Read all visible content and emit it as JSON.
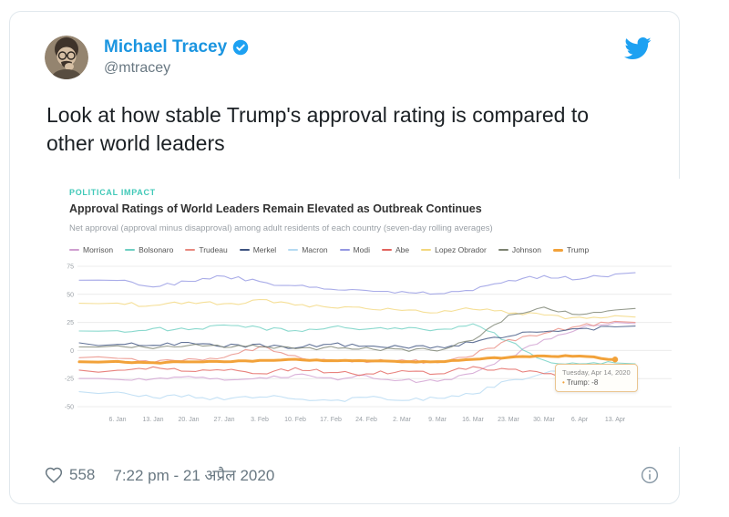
{
  "tweet": {
    "author": {
      "name": "Michael Tracey",
      "handle": "@mtracey",
      "verified": true
    },
    "text": "Look at how stable Trump's approval rating is compared to other world leaders",
    "likes": "558",
    "timestamp": "7:22 pm - 21 अप्रैल 2020"
  },
  "colors": {
    "link_blue": "#1b95e0",
    "bird_blue": "#1da1f2",
    "muted_gray": "#697882",
    "card_border": "#e1e8ed",
    "kicker_teal": "#41c9b8"
  },
  "chart_data": {
    "type": "line",
    "kicker": "POLITICAL IMPACT",
    "title": "Approval Ratings of World Leaders Remain Elevated as Outbreak Continues",
    "subtitle": "Net approval (approval minus disapproval) among adult residents of each country (seven-day rolling averages)",
    "x_ticks": [
      "6. Jan",
      "13. Jan",
      "20. Jan",
      "27. Jan",
      "3. Feb",
      "10. Feb",
      "17. Feb",
      "24. Feb",
      "2. Mar",
      "9. Mar",
      "16. Mar",
      "23. Mar",
      "30. Mar",
      "6. Apr",
      "13. Apr"
    ],
    "y_ticks": [
      75,
      50,
      25,
      0,
      -25,
      -50
    ],
    "ylim": [
      -50,
      75
    ],
    "grid": "horizontal",
    "legend_position": "top-left",
    "tooltip": {
      "date": "Tuesday, Apr 14, 2020",
      "marker": "•",
      "label": "Trump: -8"
    },
    "series": [
      {
        "name": "Morrison",
        "color": "#cf9ed0",
        "width": 1.1,
        "values": [
          -25,
          -26,
          -23,
          -26,
          -24,
          -22,
          -25,
          -23,
          -26,
          -28,
          -21,
          -6,
          10,
          20,
          25
        ]
      },
      {
        "name": "Bolsonaro",
        "color": "#6ecfc2",
        "width": 1.1,
        "values": [
          17,
          20,
          18,
          22,
          20,
          18,
          21,
          19,
          20,
          18,
          24,
          8,
          -9,
          -12,
          -11
        ]
      },
      {
        "name": "Trudeau",
        "color": "#e8897f",
        "width": 1.1,
        "values": [
          -7,
          -10,
          -8,
          -6,
          3,
          -5,
          -9,
          -10,
          -9,
          -11,
          -4,
          9,
          16,
          22,
          26
        ]
      },
      {
        "name": "Merkel",
        "color": "#3d5380",
        "width": 1.1,
        "values": [
          6,
          4,
          7,
          4,
          5,
          3,
          6,
          4,
          3,
          3,
          7,
          13,
          17,
          19,
          21
        ]
      },
      {
        "name": "Macron",
        "color": "#b5daf2",
        "width": 1.1,
        "values": [
          -37,
          -42,
          -40,
          -44,
          -41,
          -43,
          -45,
          -42,
          -44,
          -43,
          -39,
          -27,
          -21,
          -15,
          -19
        ]
      },
      {
        "name": "Modi",
        "color": "#9497e2",
        "width": 1.1,
        "values": [
          62,
          57,
          61,
          66,
          61,
          57,
          55,
          53,
          52,
          50,
          54,
          63,
          66,
          64,
          68
        ]
      },
      {
        "name": "Abe",
        "color": "#e2635d",
        "width": 1.1,
        "values": [
          -18,
          -15,
          -19,
          -17,
          -20,
          -16,
          -19,
          -21,
          -18,
          -20,
          -15,
          -17,
          -21,
          -25,
          -30
        ]
      },
      {
        "name": "Lopez Obrador",
        "color": "#f3d77d",
        "width": 1.1,
        "values": [
          42,
          40,
          44,
          41,
          45,
          40,
          38,
          37,
          36,
          34,
          37,
          34,
          31,
          29,
          31
        ]
      },
      {
        "name": "Johnson",
        "color": "#7b8271",
        "width": 1.1,
        "values": [
          4,
          2,
          5,
          3,
          4,
          1,
          3,
          2,
          1,
          0,
          9,
          31,
          38,
          32,
          36
        ]
      },
      {
        "name": "Trump",
        "color": "#f2a23a",
        "width": 3,
        "values": [
          -10,
          -11,
          -10,
          -10,
          -9,
          -8,
          -9,
          -9,
          -10,
          -10,
          -8,
          -6,
          -5,
          -5,
          -8
        ],
        "end_dot": true
      }
    ]
  }
}
